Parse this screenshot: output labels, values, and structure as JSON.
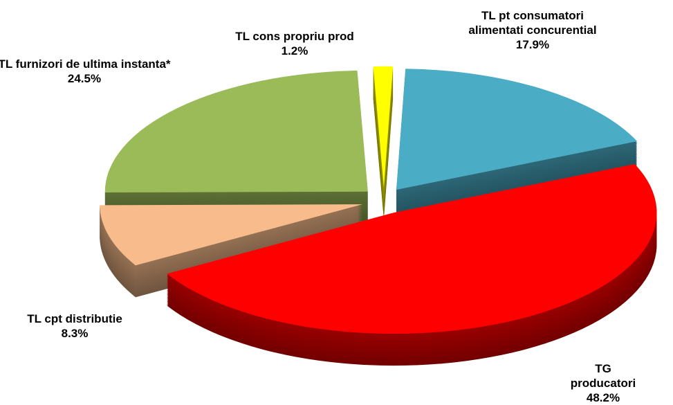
{
  "chart_data": {
    "type": "pie",
    "categories": [
      "TL pt consumatori alimentati concurential",
      "TG producatori",
      "TL cpt distributie",
      "TL furnizori de ultima instanta*",
      "TL cons propriu prod"
    ],
    "values": [
      17.9,
      48.2,
      8.3,
      24.5,
      1.2
    ],
    "value_labels": [
      "17.9%",
      "48.2%",
      "8.3%",
      "24.5%",
      "1.2%"
    ],
    "colors": [
      "#4bacc6",
      "#ff0000",
      "#f8bc8c",
      "#9bbb59",
      "#ffff00"
    ]
  }
}
